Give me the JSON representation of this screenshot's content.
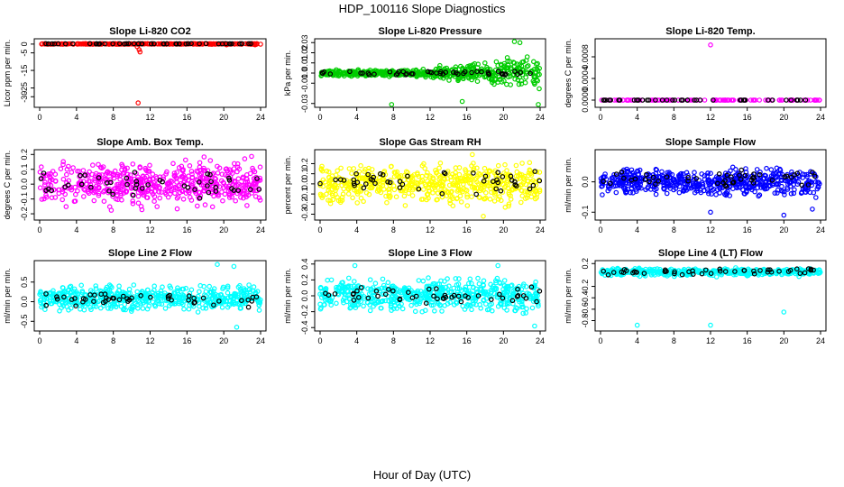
{
  "figure": {
    "title": "HDP_100116  Slope Diagnostics",
    "xlabel": "Hour of Day (UTC)"
  },
  "chart_data": [
    {
      "type": "scatter",
      "title": "Slope Li-820 CO2",
      "ylabel": "Licor ppm per min.",
      "xlim": [
        0,
        24
      ],
      "ylim": [
        -35,
        2
      ],
      "xticks": [
        0,
        4,
        8,
        12,
        16,
        20,
        24
      ],
      "yticks": [
        0,
        -5,
        -15,
        -25,
        -30
      ],
      "color": "#ff0000",
      "series": [
        {
          "name": "all",
          "color": "#ff0000",
          "pattern": "line",
          "n": 260,
          "center": 0.1,
          "spread": 0.6,
          "outliers": [
            [
              10.8,
              -3.2
            ],
            [
              10.9,
              -4.5
            ],
            [
              10.6,
              -1.5
            ],
            [
              10.7,
              -33.5
            ],
            [
              20.3,
              -0.4
            ],
            [
              23.4,
              -0.4
            ]
          ]
        },
        {
          "name": "hourly",
          "color": "#000000",
          "pattern": "line",
          "n": 48,
          "center": 0.2,
          "spread": 0.4,
          "outliers": []
        }
      ]
    },
    {
      "type": "scatter",
      "title": "Slope Li-820 Pressure",
      "ylabel": "kPa per min.",
      "xlim": [
        0,
        24
      ],
      "ylim": [
        -0.032,
        0.032
      ],
      "xticks": [
        0,
        4,
        8,
        12,
        16,
        20,
        24
      ],
      "yticks": [
        0.03,
        0.02,
        0.01,
        0.0,
        -0.01,
        -0.03
      ],
      "color": "#00cc00",
      "series": [
        {
          "name": "all",
          "color": "#00cc00",
          "pattern": "funnel",
          "n": 560,
          "center": 0.0,
          "spread": 0.004,
          "spread2": 0.022,
          "outliers": [
            [
              7.8,
              -0.031
            ],
            [
              21.2,
              0.031
            ],
            [
              21.8,
              0.03
            ],
            [
              23.8,
              -0.031
            ],
            [
              15.5,
              -0.028
            ]
          ]
        },
        {
          "name": "hourly",
          "color": "#000000",
          "pattern": "line",
          "n": 48,
          "center": 0.0,
          "spread": 0.006,
          "outliers": []
        }
      ]
    },
    {
      "type": "scatter",
      "title": "Slope Li-820 Temp.",
      "ylabel": "degrees C per min.",
      "xlim": [
        0,
        24
      ],
      "ylim": [
        -0.0001,
        0.0011
      ],
      "xticks": [
        0,
        4,
        8,
        12,
        16,
        20,
        24
      ],
      "yticks": [
        0.0,
        0.0004,
        0.0008
      ],
      "color": "#ff00ff",
      "series": [
        {
          "name": "all",
          "color": "#ff00ff",
          "pattern": "flat",
          "n": 120,
          "center": 0.0,
          "spread": 0.0,
          "outliers": [
            [
              12.0,
              0.00102
            ]
          ]
        },
        {
          "name": "hourly",
          "color": "#000000",
          "pattern": "flat",
          "n": 40,
          "center": 0.0,
          "spread": 0.0,
          "outliers": []
        }
      ]
    },
    {
      "type": "scatter",
      "title": "Slope Amb. Box Temp.",
      "ylabel": "degrees C per min.",
      "xlim": [
        0,
        24
      ],
      "ylim": [
        -0.23,
        0.22
      ],
      "xticks": [
        0,
        4,
        8,
        12,
        16,
        20,
        24
      ],
      "yticks": [
        0.2,
        0.1,
        0.0,
        -0.1,
        -0.2
      ],
      "color": "#ff00ff",
      "series": [
        {
          "name": "all",
          "color": "#ff00ff",
          "pattern": "band",
          "n": 560,
          "center": 0.0,
          "spread": 0.2,
          "outliers": []
        },
        {
          "name": "hourly",
          "color": "#000000",
          "pattern": "band",
          "n": 48,
          "center": 0.0,
          "spread": 0.13,
          "outliers": []
        }
      ]
    },
    {
      "type": "scatter",
      "title": "Slope Gas Stream RH",
      "ylabel": "percent per min.",
      "xlim": [
        0,
        24
      ],
      "ylim": [
        -0.34,
        0.32
      ],
      "xticks": [
        0,
        4,
        8,
        12,
        16,
        20,
        24
      ],
      "yticks": [
        0.2,
        0.1,
        0.0,
        -0.1,
        -0.2,
        -0.3
      ],
      "color": "#ffff00",
      "series": [
        {
          "name": "all",
          "color": "#ffff00",
          "pattern": "band",
          "n": 560,
          "center": 0.0,
          "spread": 0.26,
          "outliers": [
            [
              17.8,
              -0.32
            ],
            [
              16.6,
              0.29
            ]
          ]
        },
        {
          "name": "hourly",
          "color": "#000000",
          "pattern": "band",
          "n": 48,
          "center": 0.02,
          "spread": 0.15,
          "outliers": []
        }
      ]
    },
    {
      "type": "scatter",
      "title": "Slope Sample Flow",
      "ylabel": "ml/min per min.",
      "xlim": [
        0,
        24
      ],
      "ylim": [
        -0.12,
        0.1
      ],
      "xticks": [
        0,
        4,
        8,
        12,
        16,
        20,
        24
      ],
      "yticks": [
        0.0,
        -0.1
      ],
      "color": "#0000ff",
      "series": [
        {
          "name": "all",
          "color": "#0000ff",
          "pattern": "band",
          "n": 560,
          "center": 0.0,
          "spread": 0.06,
          "outliers": [
            [
              12.0,
              -0.1
            ],
            [
              20.0,
              -0.11
            ],
            [
              23.1,
              -0.09
            ]
          ]
        },
        {
          "name": "hourly",
          "color": "#000000",
          "pattern": "band",
          "n": 48,
          "center": 0.01,
          "spread": 0.04,
          "outliers": []
        }
      ]
    },
    {
      "type": "scatter",
      "title": "Slope Line 2 Flow",
      "ylabel": "ml/min per min.",
      "xlim": [
        0,
        24
      ],
      "ylim": [
        -0.7,
        1.0
      ],
      "xticks": [
        0,
        4,
        8,
        12,
        16,
        20,
        24
      ],
      "yticks": [
        0.5,
        0.0,
        -0.5
      ],
      "color": "#00ffff",
      "series": [
        {
          "name": "all",
          "color": "#00ffff",
          "pattern": "band",
          "n": 560,
          "center": 0.1,
          "spread": 0.45,
          "outliers": [
            [
              21.4,
              -0.65
            ],
            [
              19.3,
              0.95
            ],
            [
              21.1,
              0.9
            ]
          ]
        },
        {
          "name": "hourly",
          "color": "#000000",
          "pattern": "band",
          "n": 48,
          "center": 0.05,
          "spread": 0.25,
          "outliers": []
        }
      ]
    },
    {
      "type": "scatter",
      "title": "Slope Line 3 Flow",
      "ylabel": "ml/min per min.",
      "xlim": [
        0,
        24
      ],
      "ylim": [
        -0.42,
        0.42
      ],
      "xticks": [
        0,
        4,
        8,
        12,
        16,
        20,
        24
      ],
      "yticks": [
        0.4,
        0.2,
        0.0,
        -0.2,
        -0.4
      ],
      "color": "#00ffff",
      "series": [
        {
          "name": "all",
          "color": "#00ffff",
          "pattern": "band",
          "n": 560,
          "center": 0.0,
          "spread": 0.28,
          "outliers": [
            [
              19.4,
              0.38
            ],
            [
              3.8,
              0.38
            ],
            [
              23.4,
              -0.38
            ]
          ]
        },
        {
          "name": "hourly",
          "color": "#000000",
          "pattern": "band",
          "n": 48,
          "center": 0.0,
          "spread": 0.18,
          "outliers": []
        }
      ]
    },
    {
      "type": "scatter",
      "title": "Slope Line 4 (LT) Flow",
      "ylabel": "ml/min per min.",
      "xlim": [
        0,
        24
      ],
      "ylim": [
        -0.95,
        0.22
      ],
      "xticks": [
        0,
        4,
        8,
        12,
        16,
        20,
        24
      ],
      "yticks": [
        0.2,
        -0.2,
        -0.4,
        -0.6,
        -0.8
      ],
      "color": "#00ffff",
      "series": [
        {
          "name": "all",
          "color": "#00ffff",
          "pattern": "band",
          "n": 420,
          "center": 0.05,
          "spread": 0.09,
          "outliers": [
            [
              4.0,
              -0.88
            ],
            [
              12.0,
              -0.88
            ],
            [
              20.0,
              -0.65
            ]
          ]
        },
        {
          "name": "hourly",
          "color": "#000000",
          "pattern": "band",
          "n": 48,
          "center": 0.06,
          "spread": 0.07,
          "outliers": []
        }
      ]
    }
  ]
}
